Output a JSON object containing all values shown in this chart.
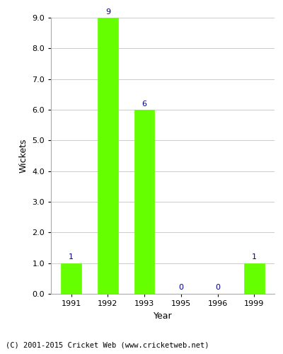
{
  "categories": [
    "1991",
    "1992",
    "1993",
    "1995",
    "1996",
    "1999"
  ],
  "values": [
    1,
    9,
    6,
    0,
    0,
    1
  ],
  "bar_color": "#66ff00",
  "bar_edge_color": "#66ff00",
  "ylabel": "Wickets",
  "xlabel": "Year",
  "ylim": [
    0.0,
    9.0
  ],
  "yticks": [
    0.0,
    1.0,
    2.0,
    3.0,
    4.0,
    5.0,
    6.0,
    7.0,
    8.0,
    9.0
  ],
  "annotation_color": "#000080",
  "annotation_fontsize": 8,
  "footer_text": "(C) 2001-2015 Cricket Web (www.cricketweb.net)",
  "footer_fontsize": 7.5,
  "background_color": "#ffffff",
  "grid_color": "#cccccc",
  "bar_width": 0.55,
  "title": ""
}
